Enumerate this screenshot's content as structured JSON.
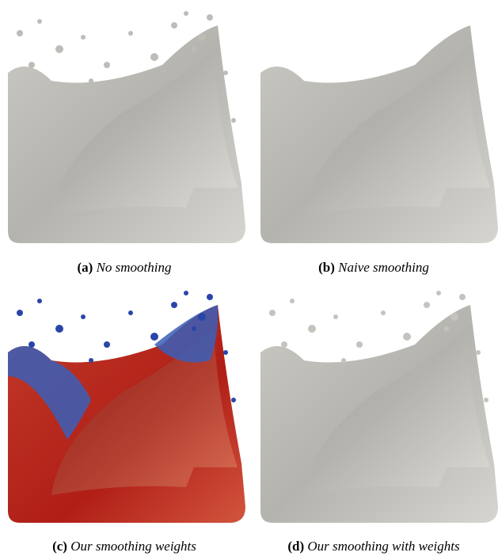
{
  "panels": [
    {
      "label": "(a)",
      "caption": "No smoothing"
    },
    {
      "label": "(b)",
      "caption": "Naive smoothing"
    },
    {
      "label": "(c)",
      "caption": "Our smoothing weights"
    },
    {
      "label": "(d)",
      "caption": "Our smoothing with weights"
    }
  ]
}
